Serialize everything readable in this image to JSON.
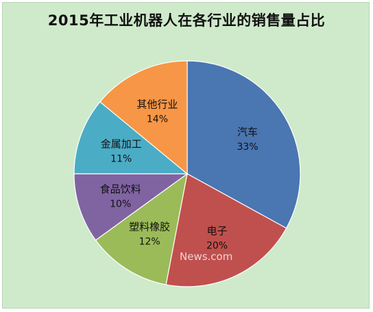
{
  "chart_data": {
    "type": "pie",
    "title": "2015年工业机器人在各行业的销售量占比",
    "slices": [
      {
        "label": "汽车",
        "value": 33,
        "value_label": "33%",
        "color": "#4a76b2"
      },
      {
        "label": "电子",
        "value": 20,
        "value_label": "20%",
        "color": "#c0504d"
      },
      {
        "label": "塑料橡胶",
        "value": 12,
        "value_label": "12%",
        "color": "#9bbb59"
      },
      {
        "label": "食品饮料",
        "value": 10,
        "value_label": "10%",
        "color": "#8064a2"
      },
      {
        "label": "金属加工",
        "value": 11,
        "value_label": "11%",
        "color": "#4bacc6"
      },
      {
        "label": "其他行业",
        "value": 14,
        "value_label": "14%",
        "color": "#f79646"
      }
    ],
    "start": "top",
    "direction": "clockwise"
  },
  "watermark": "News.com"
}
